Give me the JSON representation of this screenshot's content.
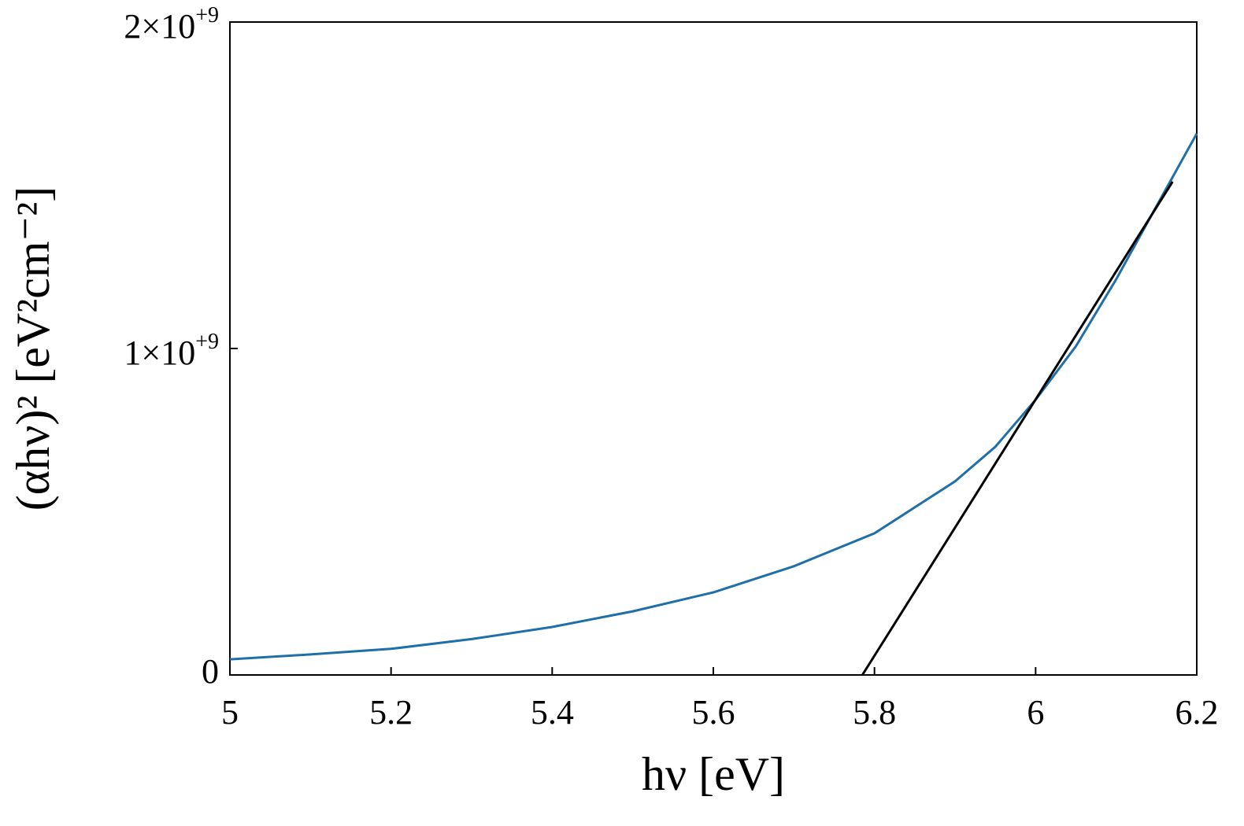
{
  "chart_data": {
    "type": "line",
    "x_label": "hν [eV]",
    "y_label": "(αhν)² [eV²cm⁻²]",
    "xlim": [
      5,
      6.2
    ],
    "xticks": [
      5,
      5.2,
      5.4,
      5.6,
      5.8,
      6,
      6.2
    ],
    "ylim": [
      0,
      2000000000
    ],
    "yticks": [
      0,
      {
        "value": 1000000000,
        "label": "1×10+9"
      },
      {
        "value": 2000000000,
        "label": "2×10+9"
      }
    ],
    "grid": false,
    "series": [
      {
        "color": "#1f6fa8",
        "x": [
          5.0,
          5.1,
          5.2,
          5.3,
          5.4,
          5.5,
          5.6,
          5.7,
          5.8,
          5.9,
          5.95,
          6.0,
          6.05,
          6.1,
          6.15,
          6.2
        ],
        "values": [
          48000000,
          63000000,
          80000000,
          110000000,
          147000000,
          195000000,
          253000000,
          333000000,
          434000000,
          593000000,
          699000000,
          843000000,
          1007000000,
          1212000000,
          1436000000,
          1658000000
        ]
      },
      {
        "color": "#000000",
        "x": [
          5.785,
          6.17
        ],
        "values": [
          0,
          1511000000
        ]
      }
    ]
  }
}
